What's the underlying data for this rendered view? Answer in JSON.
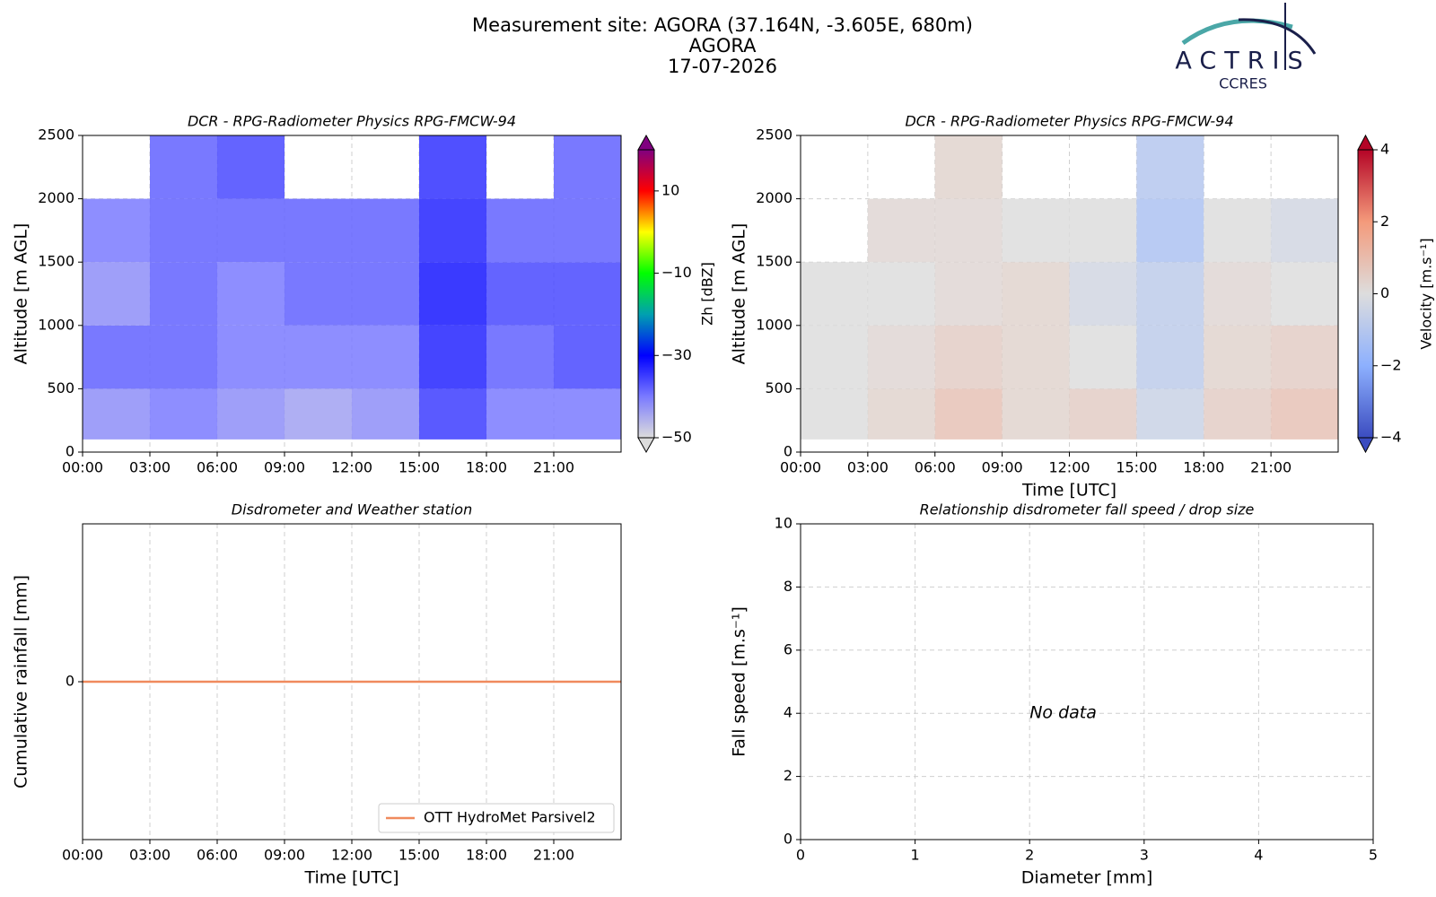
{
  "suptitle": [
    "Measurement site: AGORA (37.164N, -3.605E, 680m)",
    "AGORA",
    "17-07-2026"
  ],
  "logo": {
    "name": "ACTRIS",
    "subtitle": "CCRES"
  },
  "chart_data": [
    {
      "type": "heatmap",
      "title": "DCR - RPG-Radiometer Physics RPG-FMCW-94",
      "ylabel": "Altitude [m AGL]",
      "xlim": [
        0,
        24
      ],
      "xticks": [
        {
          "value": 0,
          "label": "00:00"
        },
        {
          "value": 3,
          "label": "03:00"
        },
        {
          "value": 6,
          "label": "06:00"
        },
        {
          "value": 9,
          "label": "09:00"
        },
        {
          "value": 12,
          "label": "12:00"
        },
        {
          "value": 15,
          "label": "15:00"
        },
        {
          "value": 18,
          "label": "18:00"
        },
        {
          "value": 21,
          "label": "21:00"
        }
      ],
      "ylim": [
        0,
        2500
      ],
      "yticks": [
        0,
        500,
        1000,
        1500,
        2000,
        2500
      ],
      "grid": true,
      "x_edges": [
        0,
        3,
        6,
        9,
        12,
        15,
        18,
        21,
        24
      ],
      "y_edges": [
        100,
        500,
        1000,
        1500,
        2000,
        2500
      ],
      "z": [
        [
          -42,
          -40,
          -42,
          -44,
          -42,
          -35,
          -40,
          -40
        ],
        [
          -38,
          -38,
          -40,
          -40,
          -40,
          -33,
          -38,
          -36
        ],
        [
          -42,
          -38,
          -40,
          -38,
          -38,
          -32,
          -36,
          -36
        ],
        [
          -40,
          -38,
          -38,
          -38,
          -38,
          -33,
          -38,
          -38
        ],
        [
          null,
          -38,
          -36,
          null,
          null,
          -34,
          null,
          -38
        ]
      ],
      "colorbar": {
        "label": "Zh [dBZ]",
        "clim": [
          -50,
          20
        ],
        "ticks": [
          {
            "value": -50,
            "label": "−50"
          },
          {
            "value": -30,
            "label": "−30"
          },
          {
            "value": -10,
            "label": "−10"
          },
          10
        ],
        "colors": [
          "#dcdcdc",
          "#7a7aff",
          "#0000ff",
          "#00a0b0",
          "#00ff00",
          "#ffff00",
          "#ff0000",
          "#800080"
        ],
        "extend": "both"
      }
    },
    {
      "type": "heatmap",
      "title": "DCR - RPG-Radiometer Physics RPG-FMCW-94",
      "ylabel": "Altitude [m AGL]",
      "xlabel": "Time [UTC]",
      "xlim": [
        0,
        24
      ],
      "xticks": [
        {
          "value": 0,
          "label": "00:00"
        },
        {
          "value": 3,
          "label": "03:00"
        },
        {
          "value": 6,
          "label": "06:00"
        },
        {
          "value": 9,
          "label": "09:00"
        },
        {
          "value": 12,
          "label": "12:00"
        },
        {
          "value": 15,
          "label": "15:00"
        },
        {
          "value": 18,
          "label": "18:00"
        },
        {
          "value": 21,
          "label": "21:00"
        }
      ],
      "ylim": [
        0,
        2500
      ],
      "yticks": [
        0,
        500,
        1000,
        1500,
        2000,
        2500
      ],
      "grid": true,
      "x_edges": [
        0,
        3,
        6,
        9,
        12,
        15,
        18,
        21,
        24
      ],
      "y_edges": [
        100,
        500,
        1000,
        1500,
        2000,
        2500
      ],
      "z": [
        [
          0,
          0.3,
          0.8,
          0.3,
          0.5,
          -0.5,
          0.5,
          0.8
        ],
        [
          0,
          0.2,
          0.5,
          0.3,
          0,
          -0.8,
          0.3,
          0.5
        ],
        [
          0,
          0,
          0.2,
          0.3,
          -0.3,
          -0.8,
          0.2,
          0
        ],
        [
          null,
          0.2,
          0.2,
          0,
          0,
          -1.2,
          0,
          -0.3
        ],
        [
          null,
          null,
          0.3,
          null,
          null,
          -1,
          null,
          null
        ]
      ],
      "colorbar": {
        "label": "Velocity [m.s⁻¹]",
        "clim": [
          -4,
          4
        ],
        "ticks": [
          {
            "value": -4,
            "label": "−4"
          },
          {
            "value": -2,
            "label": "−2"
          },
          0,
          2,
          4
        ],
        "colors": [
          "#3b4cc0",
          "#8db0fe",
          "#dddddd",
          "#f49a7b",
          "#b40426"
        ],
        "extend": "both"
      }
    },
    {
      "type": "line",
      "title": "Disdrometer and Weather station",
      "xlabel": "Time [UTC]",
      "ylabel": "Cumulative rainfall [mm]",
      "xlim": [
        0,
        24
      ],
      "xticks": [
        {
          "value": 0,
          "label": "00:00"
        },
        {
          "value": 3,
          "label": "03:00"
        },
        {
          "value": 6,
          "label": "06:00"
        },
        {
          "value": 9,
          "label": "09:00"
        },
        {
          "value": 12,
          "label": "12:00"
        },
        {
          "value": 15,
          "label": "15:00"
        },
        {
          "value": 18,
          "label": "18:00"
        },
        {
          "value": 21,
          "label": "21:00"
        }
      ],
      "ylim": [
        -0.05,
        0.05
      ],
      "yticks": [
        0
      ],
      "grid": true,
      "x": [
        0,
        24
      ],
      "series": [
        {
          "name": "OTT HydroMet Parsivel2",
          "color": "#f08a5d",
          "values": [
            0,
            0
          ]
        }
      ],
      "legend": "lower right"
    },
    {
      "type": "scatter",
      "title": "Relationship disdrometer fall speed / drop size",
      "xlabel": "Diameter [mm]",
      "ylabel": "Fall speed [m.s⁻¹]",
      "xlim": [
        0,
        5
      ],
      "xticks": [
        0,
        1,
        2,
        3,
        4,
        5
      ],
      "ylim": [
        0,
        10
      ],
      "yticks": [
        0,
        2,
        4,
        6,
        8,
        10
      ],
      "grid": true,
      "annotation": "No data"
    }
  ]
}
